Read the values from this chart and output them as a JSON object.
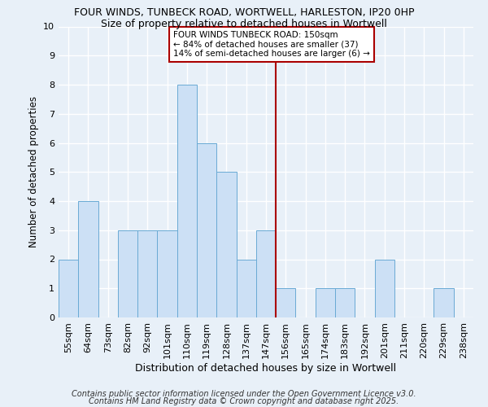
{
  "title1": "FOUR WINDS, TUNBECK ROAD, WORTWELL, HARLESTON, IP20 0HP",
  "title2": "Size of property relative to detached houses in Wortwell",
  "xlabel": "Distribution of detached houses by size in Wortwell",
  "ylabel": "Number of detached properties",
  "categories": [
    "55sqm",
    "64sqm",
    "73sqm",
    "82sqm",
    "92sqm",
    "101sqm",
    "110sqm",
    "119sqm",
    "128sqm",
    "137sqm",
    "147sqm",
    "156sqm",
    "165sqm",
    "174sqm",
    "183sqm",
    "192sqm",
    "201sqm",
    "211sqm",
    "220sqm",
    "229sqm",
    "238sqm"
  ],
  "values": [
    2,
    4,
    0,
    3,
    3,
    3,
    8,
    6,
    5,
    2,
    3,
    1,
    0,
    1,
    1,
    0,
    2,
    0,
    0,
    1,
    0
  ],
  "bar_color": "#cce0f5",
  "bar_edge_color": "#6aaad4",
  "red_line_index": 10.5,
  "annotation_line1": "FOUR WINDS TUNBECK ROAD: 150sqm",
  "annotation_line2": "← 84% of detached houses are smaller (37)",
  "annotation_line3": "14% of semi-detached houses are larger (6) →",
  "annotation_box_color": "#ffffff",
  "annotation_edge_color": "#aa0000",
  "footnote_line1": "Contains HM Land Registry data © Crown copyright and database right 2025.",
  "footnote_line2": "Contains public sector information licensed under the Open Government Licence v3.0.",
  "ylim": [
    0,
    10
  ],
  "yticks": [
    0,
    1,
    2,
    3,
    4,
    5,
    6,
    7,
    8,
    9,
    10
  ],
  "bg_color": "#e8f0f8",
  "grid_color": "#ffffff",
  "title1_fontsize": 9,
  "title2_fontsize": 9,
  "xlabel_fontsize": 9,
  "ylabel_fontsize": 8.5,
  "tick_fontsize": 8,
  "annotation_fontsize": 7.5,
  "footnote_fontsize": 7
}
